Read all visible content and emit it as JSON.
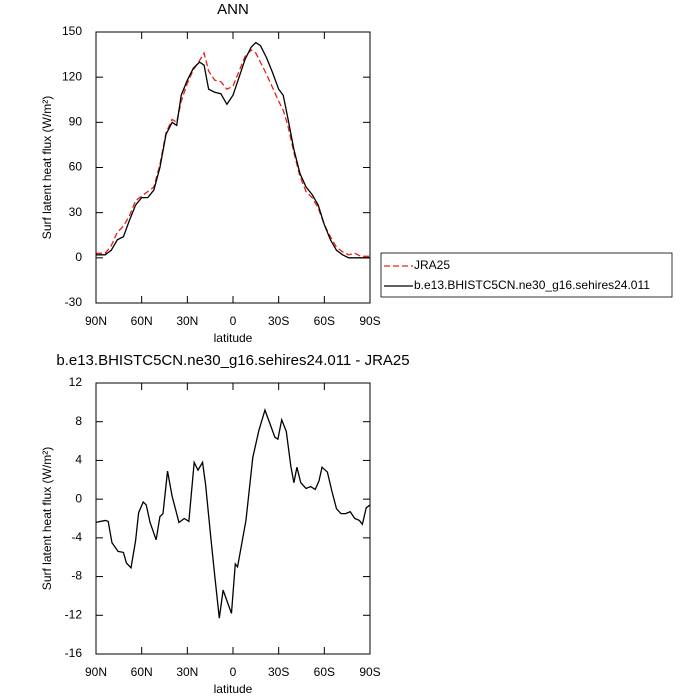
{
  "chart_data": [
    {
      "type": "line",
      "title": "ANN",
      "xlabel": "latitude",
      "ylabel": "Surf latent heat flux (W/m²)",
      "x": [
        90,
        84,
        80,
        76,
        72,
        68,
        64,
        60,
        56,
        52,
        48,
        44,
        40,
        37,
        34,
        30,
        26,
        22,
        19,
        16,
        12,
        8,
        4,
        0,
        -4,
        -8,
        -12,
        -15,
        -18,
        -22,
        -26,
        -30,
        -33,
        -36,
        -40,
        -44,
        -48,
        -52,
        -56,
        -60,
        -64,
        -68,
        -72,
        -76,
        -80,
        -84,
        -90
      ],
      "series": [
        {
          "name": "JRA25",
          "color": "#e8201a",
          "dash": true,
          "values": [
            3,
            3,
            8,
            17,
            21,
            28,
            38,
            41,
            44,
            47,
            62,
            83,
            92,
            90,
            104,
            116,
            125,
            131,
            136,
            124,
            118,
            117,
            112,
            114,
            124,
            134,
            138,
            136,
            130,
            122,
            113,
            104,
            98,
            88,
            70,
            54,
            44,
            40,
            33,
            22,
            14,
            7,
            4,
            2,
            3,
            1,
            1
          ]
        },
        {
          "name": "b.e13.BHISTC5CN.ne30_g16.sehires24.011",
          "color": "#000000",
          "dash": false,
          "values": [
            2,
            2,
            5,
            12,
            14,
            25,
            35,
            40,
            40,
            45,
            60,
            82,
            90,
            88,
            108,
            118,
            126,
            130,
            128,
            112,
            110,
            109,
            102,
            108,
            120,
            132,
            140,
            143,
            141,
            133,
            123,
            112,
            108,
            93,
            72,
            56,
            47,
            42,
            35,
            22,
            12,
            5,
            2,
            0,
            0,
            0,
            0
          ]
        }
      ],
      "xlim": [
        90,
        -90
      ],
      "xticks": [
        {
          "value": 90,
          "label": "90N"
        },
        {
          "value": 60,
          "label": "60N"
        },
        {
          "value": 30,
          "label": "30N"
        },
        0,
        {
          "value": -30,
          "label": "30S"
        },
        {
          "value": -60,
          "label": "60S"
        },
        {
          "value": -90,
          "label": "90S"
        }
      ],
      "ylim": [
        -30,
        150
      ],
      "yticks": [
        -30,
        0,
        30,
        60,
        90,
        120,
        150
      ],
      "legend": "outside-right"
    },
    {
      "type": "line",
      "title": "b.e13.BHISTC5CN.ne30_g16.sehires24.011 - JRA25",
      "xlabel": "latitude",
      "ylabel": "Surf latent heat flux (W/m²)",
      "x": [
        90,
        84,
        82,
        79.5,
        75.5,
        72,
        70,
        67,
        64,
        62,
        59,
        57,
        54.5,
        50.5,
        48,
        46,
        43,
        40,
        35.5,
        32,
        29,
        25.5,
        23,
        20,
        18,
        14.5,
        12,
        9,
        6.5,
        1,
        -1.5,
        -3,
        -8.5,
        -13,
        -17,
        -21,
        -24.5,
        -27.5,
        -29.5,
        -32,
        -35,
        -38,
        -40,
        -42,
        -44.5,
        -48,
        -51,
        -54,
        -56.5,
        -58.5,
        -62,
        -65,
        -68,
        -71,
        -74,
        -77,
        -80,
        -83,
        -85,
        -87.5,
        -90
      ],
      "series": [
        {
          "name": "b.e13.BHISTC5CN.ne30_g16.sehires24.011 - JRA25",
          "color": "#000000",
          "dash": false,
          "values": [
            -2.4,
            -2.2,
            -2.3,
            -4.5,
            -5.4,
            -5.5,
            -6.6,
            -7.1,
            -4.3,
            -1.4,
            -0.3,
            -0.6,
            -2.4,
            -4.2,
            -1.8,
            -1.5,
            2.9,
            0.3,
            -2.4,
            -2.0,
            -2.3,
            3.8,
            3.0,
            3.8,
            1.5,
            -4.1,
            -7.9,
            -12.3,
            -9.4,
            -11.8,
            -6.7,
            -7.0,
            -2.2,
            4.3,
            7.1,
            9.2,
            7.7,
            6.4,
            6.2,
            8.2,
            7.0,
            3.4,
            1.7,
            3.3,
            1.7,
            1.1,
            1.3,
            1.0,
            1.9,
            3.3,
            2.8,
            0.8,
            -1.0,
            -1.5,
            -1.5,
            -1.3,
            -2.0,
            -2.2,
            -2.6,
            -0.9,
            -0.6
          ]
        }
      ],
      "xlim": [
        90,
        -90
      ],
      "xticks": [
        {
          "value": 90,
          "label": "90N"
        },
        {
          "value": 60,
          "label": "60N"
        },
        {
          "value": 30,
          "label": "30N"
        },
        0,
        {
          "value": -30,
          "label": "30S"
        },
        {
          "value": -60,
          "label": "60S"
        },
        {
          "value": -90,
          "label": "90S"
        }
      ],
      "ylim": [
        -16,
        12
      ],
      "yticks": [
        -16,
        -12,
        -8,
        -4,
        0,
        4,
        8,
        12
      ]
    }
  ]
}
